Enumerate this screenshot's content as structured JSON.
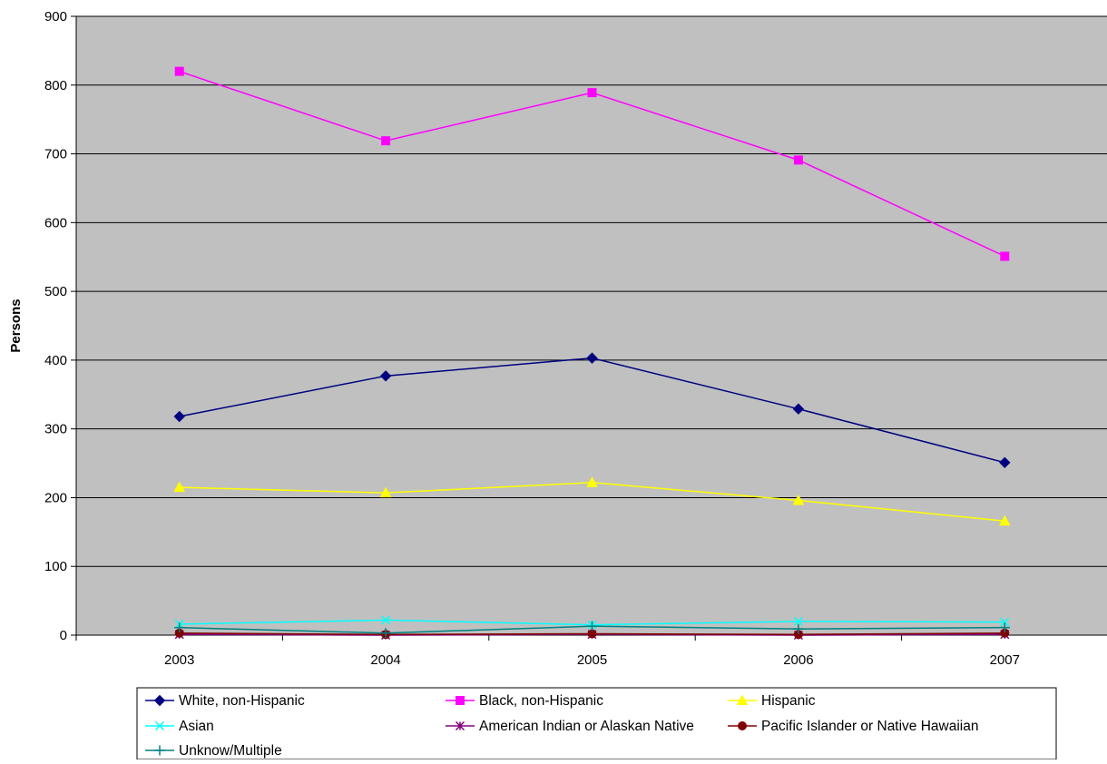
{
  "chart_data": {
    "type": "line",
    "title": "",
    "xlabel": "",
    "ylabel": "Persons",
    "ylim": [
      0,
      900
    ],
    "yticks": [
      0,
      100,
      200,
      300,
      400,
      500,
      600,
      700,
      800,
      900
    ],
    "categories": [
      "2003",
      "2004",
      "2005",
      "2006",
      "2007"
    ],
    "grid": true,
    "legend_position": "bottom",
    "plot_background": "#c0c0c0",
    "series": [
      {
        "name": "White, non-Hispanic",
        "values": [
          318,
          377,
          403,
          329,
          251
        ],
        "color": "#000080",
        "marker": "diamond"
      },
      {
        "name": "Black, non-Hispanic",
        "values": [
          820,
          719,
          789,
          691,
          551
        ],
        "color": "#ff00ff",
        "marker": "square"
      },
      {
        "name": "Hispanic",
        "values": [
          215,
          207,
          222,
          196,
          166
        ],
        "color": "#ffff00",
        "marker": "triangle"
      },
      {
        "name": "Asian",
        "values": [
          16,
          22,
          15,
          20,
          19
        ],
        "color": "#00ffff",
        "marker": "x"
      },
      {
        "name": "American Indian or Alaskan Native",
        "values": [
          1,
          0,
          1,
          0,
          1
        ],
        "color": "#800080",
        "marker": "star"
      },
      {
        "name": "Pacific Islander or Native Hawaiian",
        "values": [
          3,
          1,
          2,
          1,
          3
        ],
        "color": "#800000",
        "marker": "circle"
      },
      {
        "name": "Unknow/Multiple",
        "values": [
          11,
          3,
          13,
          9,
          11
        ],
        "color": "#008080",
        "marker": "plus"
      }
    ]
  }
}
